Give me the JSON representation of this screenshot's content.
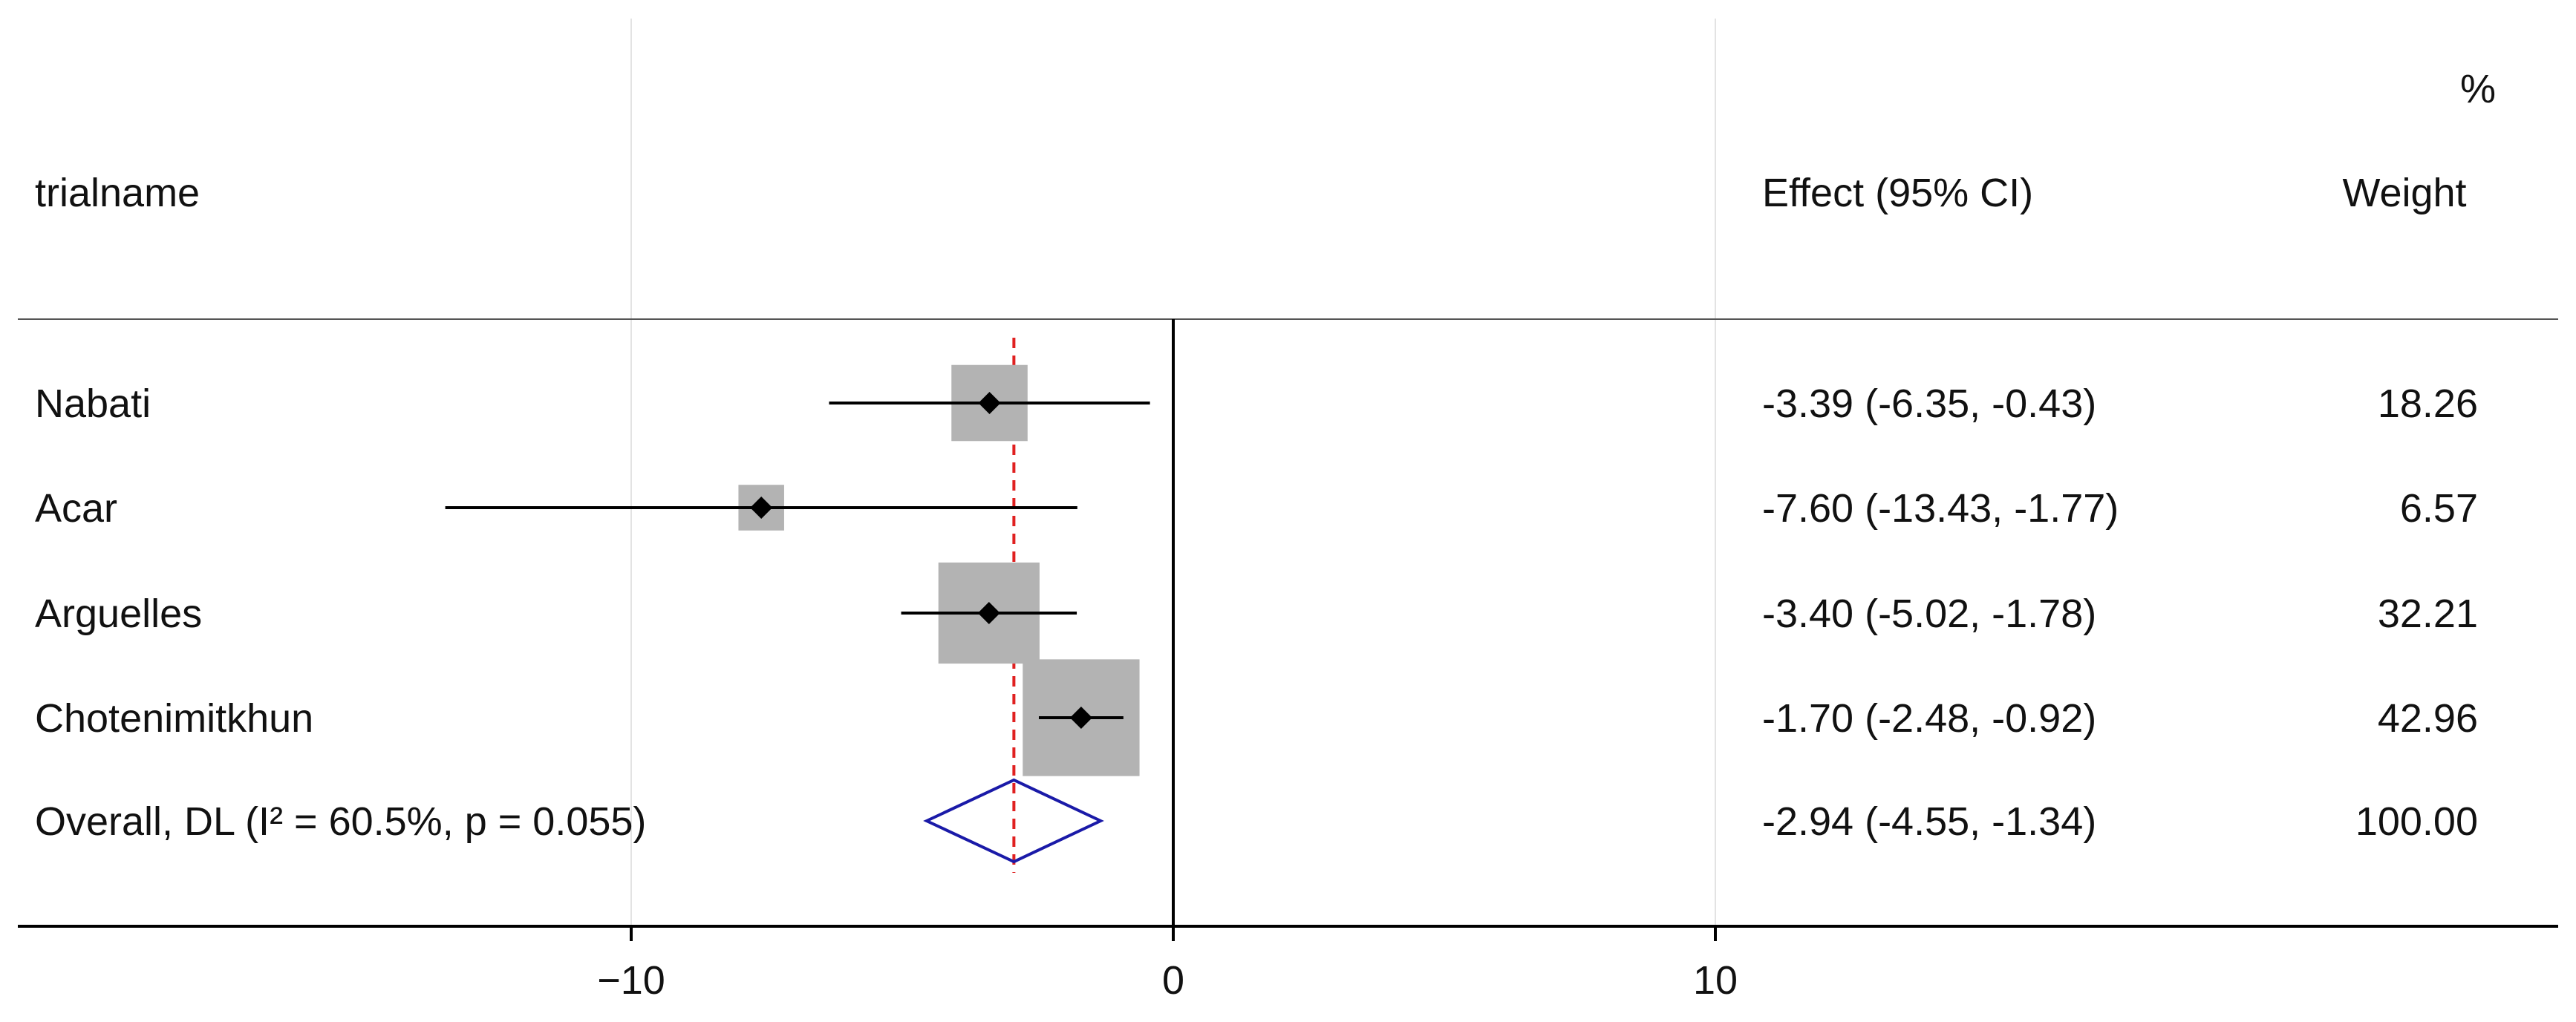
{
  "chart_data": {
    "type": "forest",
    "columns": {
      "study": "trialname",
      "effect": "Effect (95% CI)",
      "weight_top": "%",
      "weight": "Weight"
    },
    "studies": [
      {
        "name": "Nabati",
        "effect": -3.39,
        "lower": -6.35,
        "upper": -0.43,
        "effect_text": "-3.39 (-6.35, -0.43)",
        "weight": 18.26,
        "weight_text": "18.26"
      },
      {
        "name": "Acar",
        "effect": -7.6,
        "lower": -13.43,
        "upper": -1.77,
        "effect_text": "-7.60 (-13.43, -1.77)",
        "weight": 6.57,
        "weight_text": "6.57"
      },
      {
        "name": "Arguelles",
        "effect": -3.4,
        "lower": -5.02,
        "upper": -1.78,
        "effect_text": "-3.40 (-5.02, -1.78)",
        "weight": 32.21,
        "weight_text": "32.21"
      },
      {
        "name": "Chotenimitkhun",
        "effect": -1.7,
        "lower": -2.48,
        "upper": -0.92,
        "effect_text": "-1.70 (-2.48, -0.92)",
        "weight": 42.96,
        "weight_text": "42.96"
      }
    ],
    "overall": {
      "label": "Overall, DL (I² = 60.5%, p = 0.055)",
      "effect": -2.94,
      "lower": -4.55,
      "upper": -1.34,
      "effect_text": "-2.94 (-4.55, -1.34)",
      "weight_text": "100.00"
    },
    "x_ticks": [
      -10,
      0,
      10
    ],
    "x_tick_labels": [
      "−10",
      "0",
      "10"
    ],
    "xlim": [
      -21.7,
      25.5
    ],
    "null_line": 0,
    "grid": true,
    "colors": {
      "ci_line": "#000000",
      "marker": "#000000",
      "weight_box": "#b3b3b3",
      "overall_diamond": "#1a1aa8",
      "overall_line": "#e02020",
      "grid": "#e3e3e3",
      "axis": "#000000"
    }
  }
}
